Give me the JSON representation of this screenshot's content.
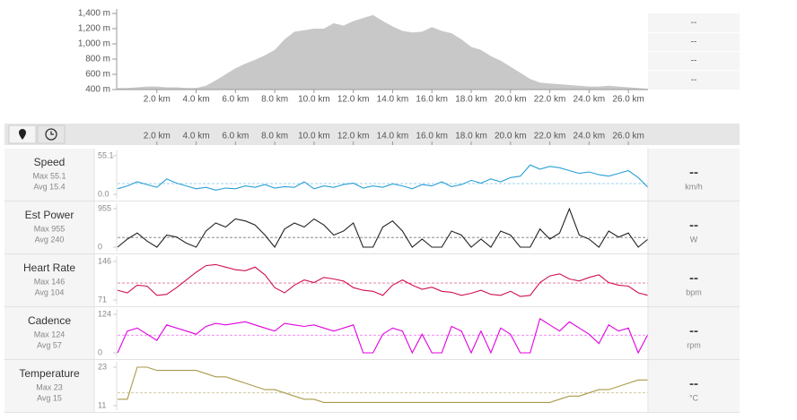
{
  "chart_data": {
    "type": "line",
    "x": [
      0,
      0.5,
      1,
      1.5,
      2,
      2.5,
      3,
      3.5,
      4,
      4.5,
      5,
      5.5,
      6,
      6.5,
      7,
      7.5,
      8,
      8.5,
      9,
      9.5,
      10,
      10.5,
      11,
      11.5,
      12,
      12.5,
      13,
      13.5,
      14,
      14.5,
      15,
      15.5,
      16,
      16.5,
      17,
      17.5,
      18,
      18.5,
      19,
      19.5,
      20,
      20.5,
      21,
      21.5,
      22,
      22.5,
      23,
      23.5,
      24,
      24.5,
      25,
      25.5,
      26,
      26.5,
      27
    ],
    "xlim": [
      0,
      27
    ],
    "xticks": [
      {
        "value": 2,
        "label": "2.0 km"
      },
      {
        "value": 4,
        "label": "4.0 km"
      },
      {
        "value": 6,
        "label": "6.0 km"
      },
      {
        "value": 8,
        "label": "8.0 km"
      },
      {
        "value": 10,
        "label": "10.0 km"
      },
      {
        "value": 12,
        "label": "12.0 km"
      },
      {
        "value": 14,
        "label": "14.0 km"
      },
      {
        "value": 16,
        "label": "16.0 km"
      },
      {
        "value": 18,
        "label": "18.0 km"
      },
      {
        "value": 20,
        "label": "20.0 km"
      },
      {
        "value": 22,
        "label": "22.0 km"
      },
      {
        "value": 24,
        "label": "24.0 km"
      },
      {
        "value": 26,
        "label": "26.0 km"
      }
    ],
    "elevation": {
      "type": "area",
      "color": "#c8c8c8",
      "values": [
        420,
        420,
        430,
        440,
        440,
        430,
        430,
        420,
        420,
        450,
        520,
        600,
        680,
        740,
        790,
        850,
        920,
        1060,
        1160,
        1180,
        1200,
        1200,
        1270,
        1240,
        1300,
        1340,
        1380,
        1300,
        1230,
        1170,
        1150,
        1160,
        1220,
        1170,
        1140,
        1060,
        960,
        920,
        840,
        780,
        700,
        620,
        540,
        490,
        480,
        470,
        460,
        450,
        440,
        440,
        450,
        440,
        430,
        420,
        410
      ],
      "ylim": [
        400,
        1400
      ],
      "yticks": [
        {
          "value": 400,
          "label": "400 m"
        },
        {
          "value": 600,
          "label": "600 m"
        },
        {
          "value": 800,
          "label": "800 m"
        },
        {
          "value": 1000,
          "label": "1,000 m"
        },
        {
          "value": 1200,
          "label": "1,200 m"
        },
        {
          "value": 1400,
          "label": "1,400 m"
        }
      ],
      "stats": [
        "--",
        "--",
        "--",
        "--"
      ]
    },
    "series": [
      {
        "name": "Speed",
        "color": "#2a9fd6",
        "max_label": "Max 55.1",
        "avg_label": "Avg 15.4",
        "avg": 15.4,
        "current": "--",
        "unit": "km/h",
        "ylim": [
          0,
          55.1
        ],
        "yticks": [
          {
            "value": 0,
            "label": "0.0"
          },
          55.1
        ],
        "values": [
          8,
          12,
          18,
          14,
          10,
          22,
          16,
          12,
          8,
          10,
          6,
          9,
          8,
          12,
          10,
          14,
          9,
          11,
          10,
          18,
          8,
          12,
          10,
          14,
          16,
          9,
          12,
          10,
          15,
          12,
          8,
          14,
          12,
          18,
          11,
          14,
          20,
          16,
          22,
          18,
          24,
          26,
          42,
          36,
          40,
          38,
          34,
          30,
          32,
          28,
          26,
          30,
          34,
          24,
          10
        ]
      },
      {
        "name": "Est Power",
        "color": "#222222",
        "max_label": "Max 955",
        "avg_label": "Avg 240",
        "avg": 240,
        "current": "--",
        "unit": "W",
        "ylim": [
          0,
          955
        ],
        "yticks": [
          0,
          955
        ],
        "values": [
          0,
          200,
          350,
          150,
          0,
          300,
          250,
          100,
          0,
          400,
          600,
          500,
          700,
          650,
          550,
          300,
          0,
          450,
          600,
          500,
          700,
          550,
          300,
          400,
          600,
          0,
          0,
          500,
          650,
          400,
          0,
          200,
          0,
          0,
          400,
          300,
          0,
          200,
          0,
          400,
          300,
          0,
          0,
          450,
          200,
          350,
          950,
          300,
          200,
          0,
          400,
          250,
          350,
          0,
          200
        ]
      },
      {
        "name": "Heart Rate",
        "color": "#d0104c",
        "max_label": "Max 146",
        "avg_label": "Avg 104",
        "avg": 104,
        "current": "--",
        "unit": "bpm",
        "ylim": [
          71,
          146
        ],
        "yticks": [
          71,
          146
        ],
        "values": [
          90,
          85,
          100,
          98,
          80,
          82,
          95,
          110,
          125,
          138,
          140,
          135,
          130,
          128,
          135,
          120,
          95,
          85,
          100,
          110,
          105,
          115,
          112,
          108,
          95,
          90,
          88,
          80,
          100,
          110,
          100,
          92,
          96,
          88,
          86,
          80,
          84,
          90,
          82,
          80,
          88,
          78,
          80,
          105,
          118,
          122,
          112,
          108,
          115,
          120,
          105,
          100,
          98,
          85,
          80
        ]
      },
      {
        "name": "Cadence",
        "color": "#e000e0",
        "max_label": "Max 124",
        "avg_label": "Avg 57",
        "avg": 57,
        "current": "--",
        "unit": "rpm",
        "ylim": [
          0,
          124
        ],
        "yticks": [
          0,
          124
        ],
        "values": [
          0,
          70,
          80,
          60,
          40,
          90,
          80,
          70,
          60,
          85,
          95,
          90,
          95,
          100,
          90,
          80,
          70,
          95,
          90,
          85,
          90,
          80,
          70,
          80,
          90,
          0,
          0,
          60,
          80,
          70,
          0,
          60,
          0,
          0,
          85,
          70,
          0,
          70,
          0,
          80,
          60,
          0,
          0,
          110,
          90,
          70,
          100,
          80,
          60,
          30,
          90,
          70,
          80,
          0,
          60
        ]
      },
      {
        "name": "Temperature",
        "color": "#a89a4a",
        "max_label": "Max 23",
        "avg_label": "Avg 15",
        "avg": 15,
        "current": "--",
        "unit": "°C",
        "ylim": [
          11,
          23
        ],
        "yticks": [
          11,
          23
        ],
        "values": [
          13,
          13,
          23,
          23,
          22,
          22,
          22,
          22,
          22,
          21,
          20,
          20,
          19,
          18,
          17,
          16,
          16,
          15,
          14,
          13,
          13,
          12,
          12,
          12,
          12,
          12,
          12,
          12,
          12,
          12,
          12,
          12,
          12,
          12,
          12,
          12,
          12,
          12,
          12,
          12,
          12,
          12,
          12,
          12,
          12,
          13,
          14,
          14,
          15,
          16,
          16,
          17,
          18,
          19,
          19
        ]
      }
    ]
  }
}
